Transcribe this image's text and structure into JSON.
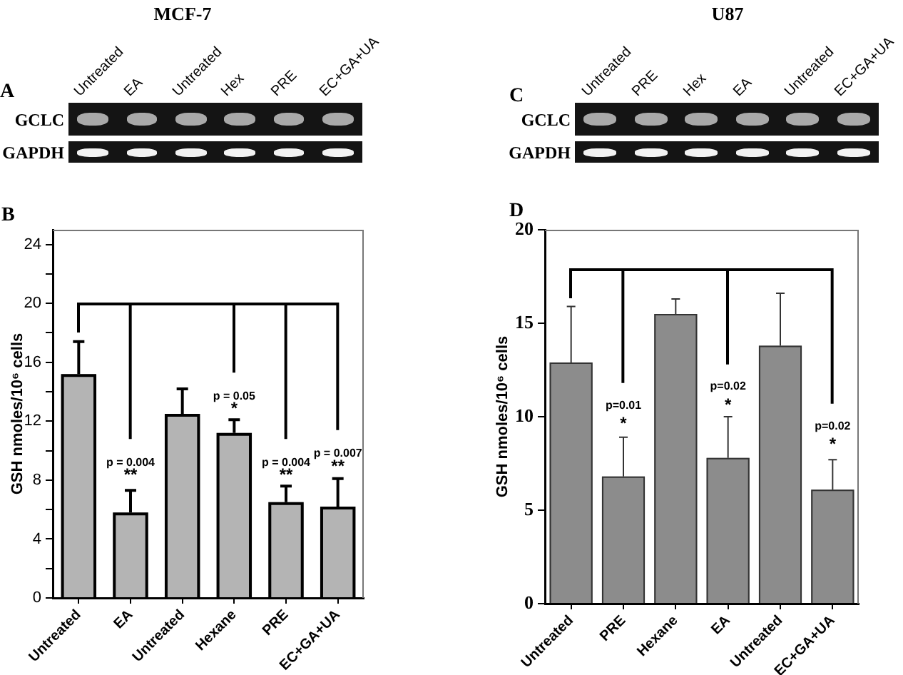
{
  "chart_data": [
    {
      "type": "other",
      "title": "MCF-7",
      "categories": [
        "Untreated",
        "EA",
        "Untreated",
        "Hex",
        "PRE",
        "EC+GA+UA"
      ],
      "y_categories": [
        "GCLC",
        "GAPDH"
      ],
      "annotations": [
        "A"
      ]
    },
    {
      "type": "other",
      "title": "U87",
      "categories": [
        "Untreated",
        "PRE",
        "Hex",
        "EA",
        "Untreated",
        "EC+GA+UA"
      ],
      "y_categories": [
        "GCLC",
        "GAPDH"
      ],
      "annotations": [
        "C"
      ]
    },
    {
      "type": "bar",
      "ylabel": "GSH nmoles/10⁶ cells",
      "categories": [
        "Untreated",
        "EA",
        "Untreated",
        "Hexane",
        "PRE",
        "EC+GA+UA"
      ],
      "values": [
        15.2,
        5.8,
        12.5,
        11.2,
        6.5,
        6.2
      ],
      "errors": [
        [
          15.2,
          17.4
        ],
        [
          5.8,
          7.3
        ],
        [
          12.5,
          14.2
        ],
        [
          11.2,
          12.1
        ],
        [
          6.5,
          7.6
        ],
        [
          6.2,
          8.1
        ]
      ],
      "color": "#b4b4b4",
      "ylim": [
        0,
        25
      ],
      "yticks": [
        0,
        {
          "value": 2,
          "label": null
        },
        4,
        {
          "value": 6,
          "label": null
        },
        8,
        {
          "value": 10,
          "label": null
        },
        12,
        {
          "value": 14,
          "label": null
        },
        16,
        {
          "value": 18,
          "label": null
        },
        20,
        {
          "value": 22,
          "label": null
        },
        24
      ],
      "annotations": [
        "B",
        "p = 0.004",
        "**",
        "p = 0.05",
        "*",
        "p = 0.004",
        "**",
        "p = 0.007",
        "**"
      ]
    },
    {
      "type": "bar",
      "ylabel": "GSH nmoles/10⁶ cells",
      "categories": [
        "Untreated",
        "PRE",
        "Hexane",
        "EA",
        "Untreated",
        "EC+GA+UA"
      ],
      "values": [
        12.9,
        6.8,
        15.5,
        7.8,
        13.8,
        6.1
      ],
      "errors": [
        [
          12.9,
          15.9
        ],
        [
          6.8,
          8.9
        ],
        [
          15.5,
          16.3
        ],
        [
          7.8,
          10.0
        ],
        [
          13.8,
          16.6
        ],
        [
          6.1,
          7.7
        ]
      ],
      "color": "#8c8c8c",
      "ylim": [
        0,
        20
      ],
      "yticks": [
        0,
        5,
        10,
        15,
        20
      ],
      "annotations": [
        "D",
        "p=0.01",
        "*",
        "p=0.02",
        "*",
        "p=0.02",
        "*"
      ]
    }
  ]
}
